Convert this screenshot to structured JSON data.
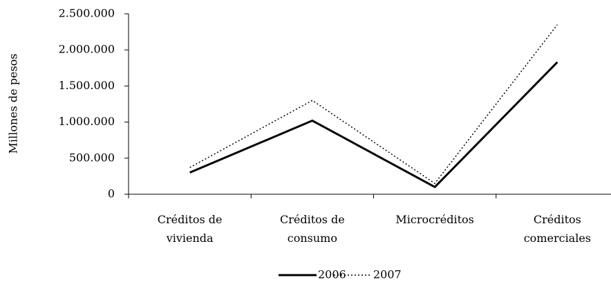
{
  "chart_data": {
    "type": "line",
    "y_label": "Millones de pesos",
    "categories": [
      "Créditos de vivienda",
      "Créditos de consumo",
      "Microcréditos",
      "Créditos comerciales"
    ],
    "series": [
      {
        "name": "2006",
        "color": "#000000",
        "style": "solid",
        "values": [
          300000,
          1020000,
          100000,
          1830000
        ]
      },
      {
        "name": "2007",
        "color": "#000000",
        "style": "dotted",
        "values": [
          370000,
          1300000,
          150000,
          2350000
        ]
      }
    ],
    "ylim": [
      0,
      2500000
    ],
    "yticks": [
      0,
      {
        "value": 500000,
        "label": "500.000"
      },
      {
        "value": 1000000,
        "label": "1.000.000"
      },
      {
        "value": 1500000,
        "label": "1.500.000"
      },
      {
        "value": 2000000,
        "label": "2.000.000"
      },
      {
        "value": 2500000,
        "label": "2.500.000"
      }
    ],
    "legend": "bottom"
  }
}
